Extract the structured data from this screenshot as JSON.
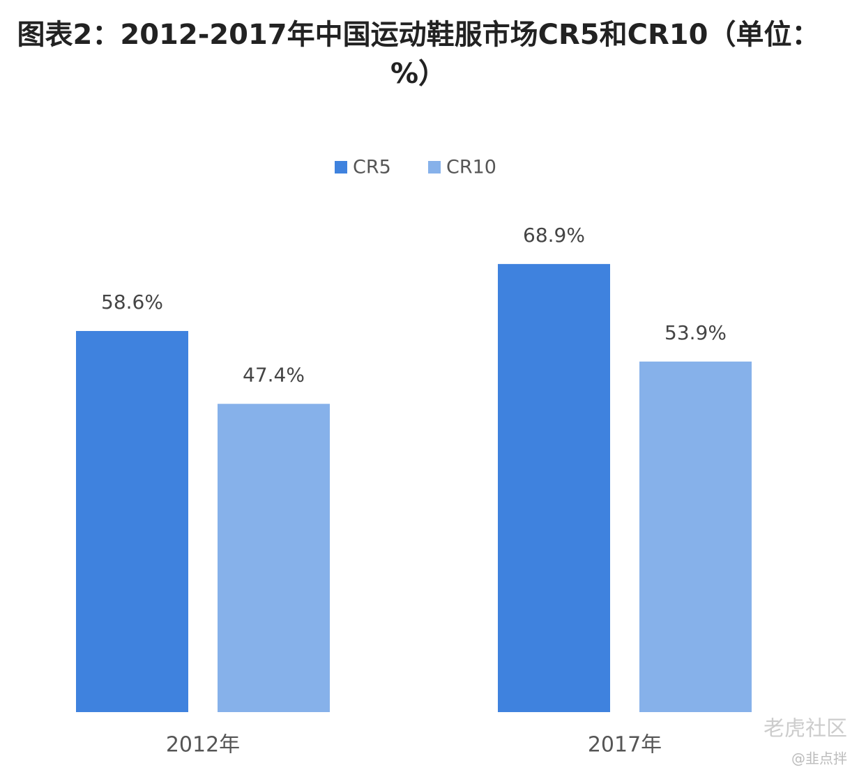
{
  "chart_data": {
    "type": "bar",
    "title": "图表2：2012-2017年中国运动鞋服市场CR5和CR10（单位：%）",
    "categories": [
      "2012年",
      "2017年"
    ],
    "series": [
      {
        "name": "CR5",
        "color": "#3f82de",
        "values": [
          58.6,
          68.9
        ],
        "value_labels": [
          "58.6%",
          "68.9%"
        ]
      },
      {
        "name": "CR10",
        "color": "#86b1ea",
        "values": [
          47.4,
          53.9
        ],
        "value_labels": [
          "47.4%",
          "53.9%"
        ]
      }
    ],
    "watermark": "老虎社区",
    "credit": "@韭点拌"
  }
}
